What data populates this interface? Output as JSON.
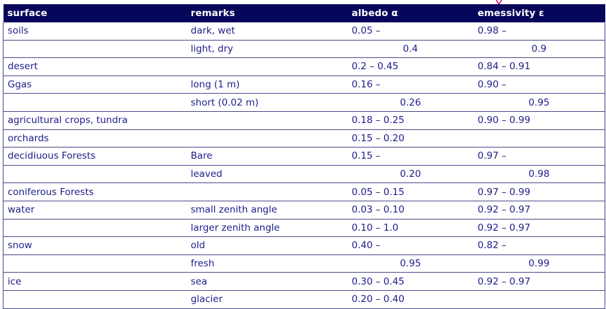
{
  "table": {
    "headers": [
      "surface",
      "remarks",
      "albedo α",
      "emessivity ε"
    ],
    "rows": [
      {
        "surface": "soils",
        "remarks": "dark, wet",
        "albedo": "0.05 –",
        "albedo_align": "left",
        "emissivity": "0.98 –",
        "emissivity_align": "left"
      },
      {
        "surface": "",
        "remarks": "light, dry",
        "albedo": "0.4",
        "albedo_align": "center",
        "emissivity": "0.9",
        "emissivity_align": "center"
      },
      {
        "surface": "desert",
        "remarks": "",
        "albedo": "0.2 – 0.45",
        "albedo_align": "left",
        "emissivity": "0.84 – 0.91",
        "emissivity_align": "left"
      },
      {
        "surface": "Ggas",
        "remarks": "long (1 m)",
        "albedo": "0.16 –",
        "albedo_align": "left",
        "emissivity": "0.90 –",
        "emissivity_align": "left"
      },
      {
        "surface": "",
        "remarks": "short (0.02 m)",
        "albedo": "0.26",
        "albedo_align": "center",
        "emissivity": "0.95",
        "emissivity_align": "center"
      },
      {
        "surface": "agricultural crops, tundra",
        "remarks": "",
        "albedo": "0.18 – 0.25",
        "albedo_align": "left",
        "emissivity": "0.90 – 0.99",
        "emissivity_align": "left"
      },
      {
        "surface": "orchards",
        "remarks": "",
        "albedo": "0.15 – 0.20",
        "albedo_align": "left",
        "emissivity": "",
        "emissivity_align": "left"
      },
      {
        "surface": "decidiuous Forests",
        "remarks": "Bare",
        "albedo": "0.15 –",
        "albedo_align": "left",
        "emissivity": "0.97 –",
        "emissivity_align": "left"
      },
      {
        "surface": "",
        "remarks": "leaved",
        "albedo": "0.20",
        "albedo_align": "center",
        "emissivity": "0.98",
        "emissivity_align": "center"
      },
      {
        "surface": "coniferous Forests",
        "remarks": "",
        "albedo": "0.05 – 0.15",
        "albedo_align": "left",
        "emissivity": "0.97 – 0.99",
        "emissivity_align": "left"
      },
      {
        "surface": "water",
        "remarks": "small zenith angle",
        "albedo": "0.03 – 0.10",
        "albedo_align": "left",
        "emissivity": "0.92 – 0.97",
        "emissivity_align": "left"
      },
      {
        "surface": "",
        "remarks": "larger zenith angle",
        "albedo": "0.10 – 1.0",
        "albedo_align": "left",
        "emissivity": "0.92 – 0.97",
        "emissivity_align": "left"
      },
      {
        "surface": "snow",
        "remarks": "old",
        "albedo": "0.40 –",
        "albedo_align": "left",
        "emissivity": "0.82 –",
        "emissivity_align": "left"
      },
      {
        "surface": "",
        "remarks": "fresh",
        "albedo": "0.95",
        "albedo_align": "center",
        "emissivity": "0.99",
        "emissivity_align": "center"
      },
      {
        "surface": "ice",
        "remarks": "sea",
        "albedo": "0.30 – 0.45",
        "albedo_align": "left",
        "emissivity": "0.92 – 0.97",
        "emissivity_align": "left"
      },
      {
        "surface": "",
        "remarks": "glacier",
        "albedo": "0.20 – 0.40",
        "albedo_align": "left",
        "emissivity": "",
        "emissivity_align": "left"
      }
    ]
  },
  "colors": {
    "header_bg": "#06065a",
    "header_text": "#ffffff",
    "cell_text": "#1c1c8a",
    "rule": "#4a4a8a",
    "marker": "#d0207a"
  },
  "icons": {
    "marker": "pink-arrow-marker-icon"
  }
}
